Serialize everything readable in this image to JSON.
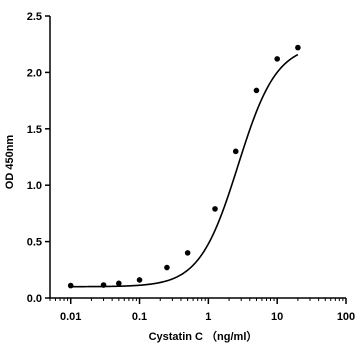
{
  "chart_data": {
    "type": "scatter",
    "xlabel": "Cystatin C （ng/ml）",
    "ylabel": "OD 450nm",
    "x_scale": "log",
    "xlim": [
      0.005,
      100
    ],
    "ylim": [
      0,
      2.5
    ],
    "x_ticks": [
      0.01,
      0.1,
      1,
      10,
      100
    ],
    "x_tick_labels": [
      "0.01",
      "0.1",
      "1",
      "10",
      "100"
    ],
    "y_ticks": [
      0,
      0.5,
      1,
      1.5,
      2,
      2.5
    ],
    "y_tick_labels": [
      "0.0",
      "0.5",
      "1.0",
      "1.5",
      "2.0",
      "2.5"
    ],
    "grid": false,
    "series": [
      {
        "points": [
          {
            "x": 0.01,
            "y": 0.11
          },
          {
            "x": 0.03,
            "y": 0.115
          },
          {
            "x": 0.05,
            "y": 0.13
          },
          {
            "x": 0.1,
            "y": 0.16
          },
          {
            "x": 0.25,
            "y": 0.27
          },
          {
            "x": 0.5,
            "y": 0.4
          },
          {
            "x": 1.25,
            "y": 0.79
          },
          {
            "x": 2.5,
            "y": 1.3
          },
          {
            "x": 5,
            "y": 1.84
          },
          {
            "x": 10,
            "y": 2.12
          },
          {
            "x": 20,
            "y": 2.22
          }
        ],
        "fit": {
          "bottom": 0.1,
          "top": 2.25,
          "ec50": 2.7,
          "hill": 1.55
        }
      }
    ],
    "colors": {
      "marker": "#000000",
      "curve": "#000000",
      "axis": "#000000"
    }
  }
}
